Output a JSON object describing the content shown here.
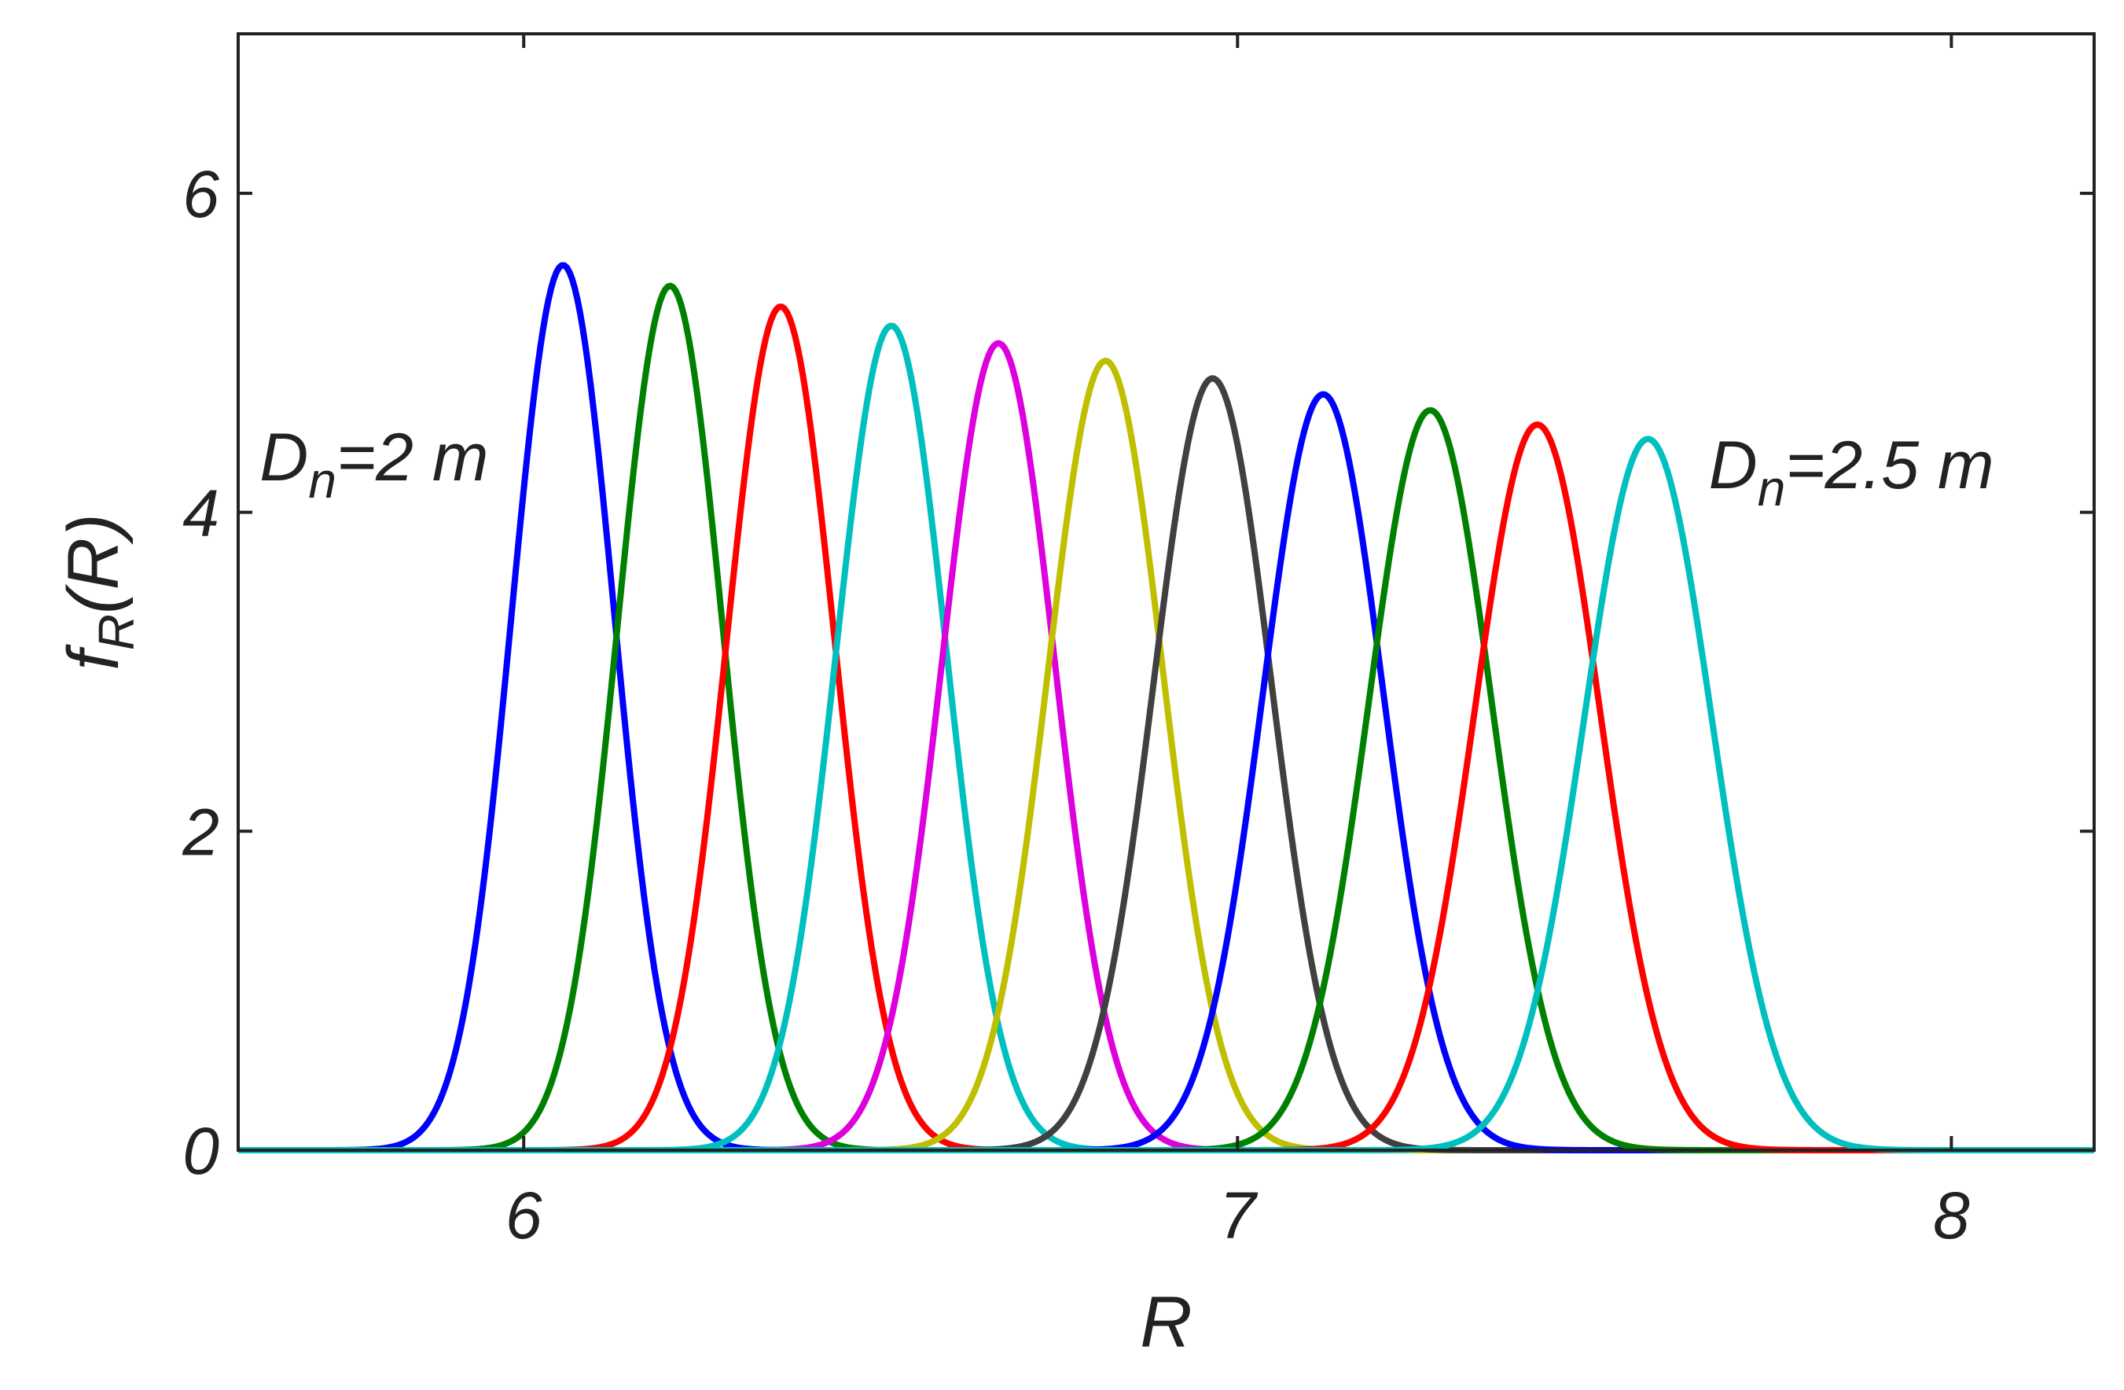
{
  "chart_data": {
    "type": "line",
    "xlabel": "R",
    "ylabel": {
      "main": "f",
      "subscript": "R",
      "suffix": "(R)"
    },
    "xlim": [
      5.6,
      8.2
    ],
    "ylim": [
      0,
      7
    ],
    "xticks": [
      6,
      7,
      8
    ],
    "yticks": [
      0,
      2,
      4,
      6
    ],
    "grid": false,
    "legend": "none",
    "annotations": [
      {
        "main": "D",
        "subscript": "n",
        "suffix": "=2 m",
        "at": [
          5.63,
          4.2
        ]
      },
      {
        "main": "D",
        "subscript": "n",
        "suffix": "=2.5 m",
        "at": [
          7.66,
          4.15
        ]
      }
    ],
    "series": [
      {
        "mean": 6.055,
        "peak": 5.55,
        "color": "#0000ff"
      },
      {
        "mean": 6.205,
        "peak": 5.42,
        "color": "#008000"
      },
      {
        "mean": 6.36,
        "peak": 5.29,
        "color": "#ff0000"
      },
      {
        "mean": 6.515,
        "peak": 5.17,
        "color": "#00bfbf"
      },
      {
        "mean": 6.665,
        "peak": 5.06,
        "color": "#dd00dd"
      },
      {
        "mean": 6.815,
        "peak": 4.95,
        "color": "#bfbf00"
      },
      {
        "mean": 6.965,
        "peak": 4.84,
        "color": "#404040"
      },
      {
        "mean": 7.12,
        "peak": 4.74,
        "color": "#0000ff"
      },
      {
        "mean": 7.27,
        "peak": 4.64,
        "color": "#008000"
      },
      {
        "mean": 7.42,
        "peak": 4.55,
        "color": "#ff0000"
      },
      {
        "mean": 7.575,
        "peak": 4.46,
        "color": "#00bfbf"
      }
    ]
  }
}
